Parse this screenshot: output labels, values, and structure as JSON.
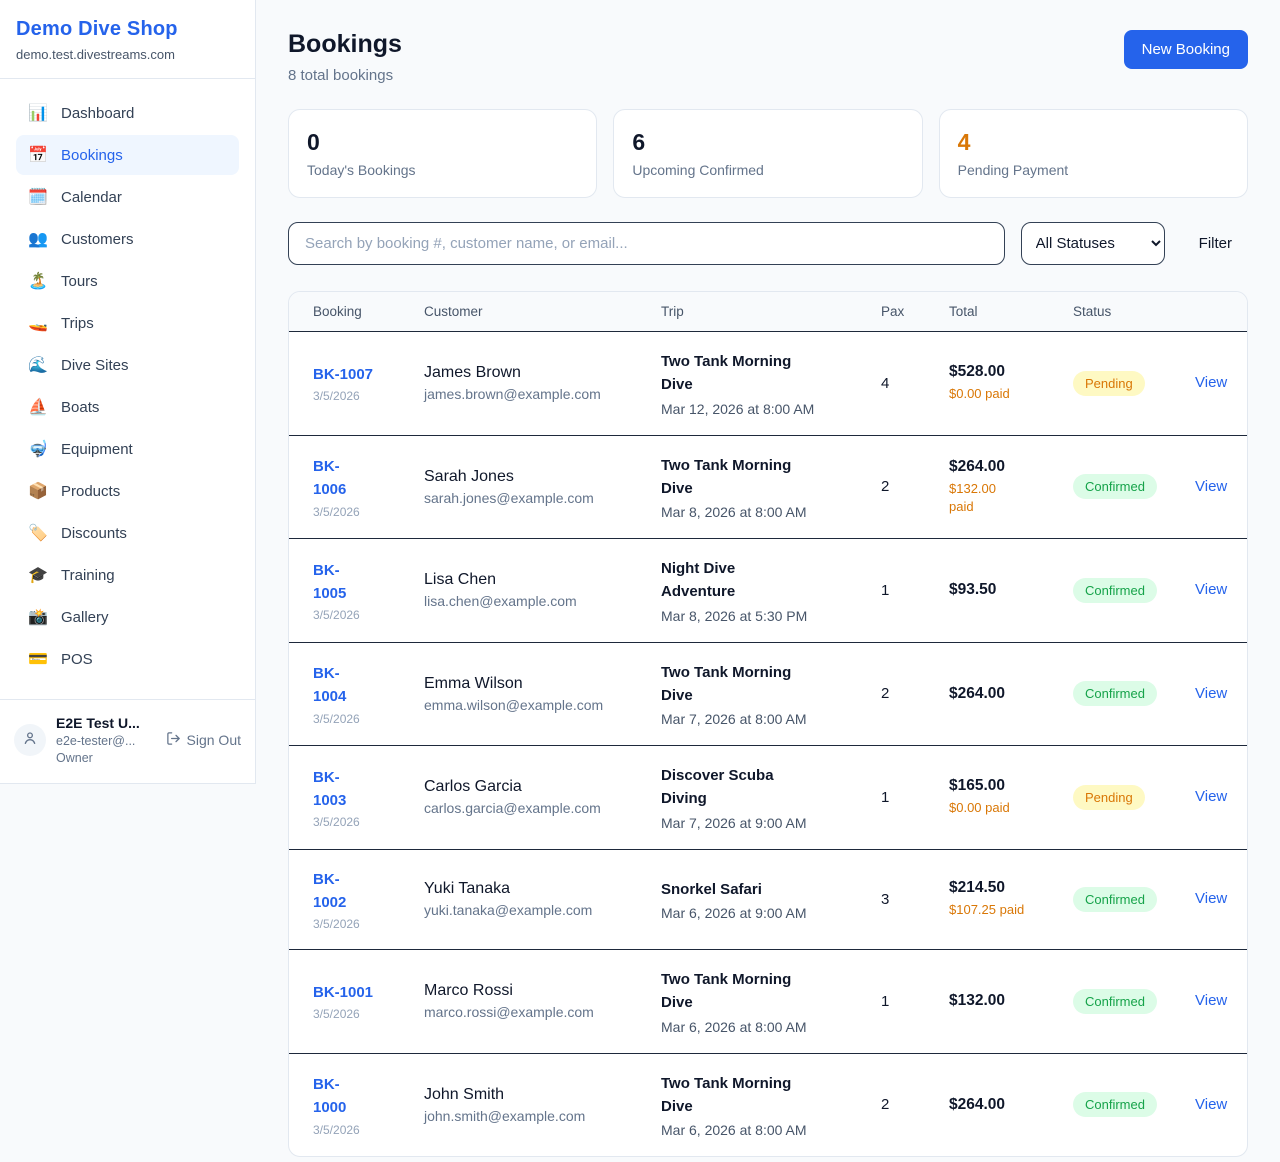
{
  "sidebar": {
    "brand": "Demo Dive Shop",
    "domain": "demo.test.divestreams.com",
    "items": [
      {
        "icon": "📊",
        "icon_name": "dashboard-icon",
        "label": "Dashboard",
        "active": false
      },
      {
        "icon": "📅",
        "icon_name": "bookings-icon",
        "label": "Bookings",
        "active": true
      },
      {
        "icon": "🗓️",
        "icon_name": "calendar-icon",
        "label": "Calendar",
        "active": false
      },
      {
        "icon": "👥",
        "icon_name": "customers-icon",
        "label": "Customers",
        "active": false
      },
      {
        "icon": "🏝️",
        "icon_name": "tours-icon",
        "label": "Tours",
        "active": false
      },
      {
        "icon": "🚤",
        "icon_name": "trips-icon",
        "label": "Trips",
        "active": false
      },
      {
        "icon": "🌊",
        "icon_name": "dive-sites-icon",
        "label": "Dive Sites",
        "active": false
      },
      {
        "icon": "⛵",
        "icon_name": "boats-icon",
        "label": "Boats",
        "active": false
      },
      {
        "icon": "🤿",
        "icon_name": "equipment-icon",
        "label": "Equipment",
        "active": false
      },
      {
        "icon": "📦",
        "icon_name": "products-icon",
        "label": "Products",
        "active": false
      },
      {
        "icon": "🏷️",
        "icon_name": "discounts-icon",
        "label": "Discounts",
        "active": false
      },
      {
        "icon": "🎓",
        "icon_name": "training-icon",
        "label": "Training",
        "active": false
      },
      {
        "icon": "📸",
        "icon_name": "gallery-icon",
        "label": "Gallery",
        "active": false
      },
      {
        "icon": "💳",
        "icon_name": "pos-icon",
        "label": "POS",
        "active": false
      }
    ],
    "user": {
      "name": "E2E Test U...",
      "email": "e2e-tester@...",
      "role": "Owner",
      "sign_out": "Sign Out"
    }
  },
  "header": {
    "title": "Bookings",
    "subtitle": "8 total bookings",
    "new_booking": "New Booking"
  },
  "stats": [
    {
      "value": "0",
      "label": "Today's Bookings",
      "accent": false
    },
    {
      "value": "6",
      "label": "Upcoming Confirmed",
      "accent": false
    },
    {
      "value": "4",
      "label": "Pending Payment",
      "accent": true
    }
  ],
  "controls": {
    "search_placeholder": "Search by booking #, customer name, or email...",
    "status_filter_value": "All Statuses",
    "filter_label": "Filter"
  },
  "table": {
    "headers": [
      "Booking",
      "Customer",
      "Trip",
      "Pax",
      "Total",
      "Status"
    ],
    "view_label": "View",
    "rows": [
      {
        "id": "BK-1007",
        "id_wrap": false,
        "date": "3/5/2026",
        "customer": "James Brown",
        "email": "james.brown@example.com",
        "trip": "Two Tank Morning Dive",
        "trip_time": "Mar 12, 2026 at 8:00 AM",
        "pax": "4",
        "total": "$528.00",
        "paid": "$0.00 paid",
        "paid_wrap": false,
        "status": "Pending"
      },
      {
        "id": "BK-1006",
        "id_wrap": true,
        "date": "3/5/2026",
        "customer": "Sarah Jones",
        "email": "sarah.jones@example.com",
        "trip": "Two Tank Morning Dive",
        "trip_time": "Mar 8, 2026 at 8:00 AM",
        "pax": "2",
        "total": "$264.00",
        "paid": "$132.00 paid",
        "paid_wrap": true,
        "status": "Confirmed"
      },
      {
        "id": "BK-1005",
        "id_wrap": true,
        "date": "3/5/2026",
        "customer": "Lisa Chen",
        "email": "lisa.chen@example.com",
        "trip": "Night Dive Adventure",
        "trip_time": "Mar 8, 2026 at 5:30 PM",
        "pax": "1",
        "total": "$93.50",
        "paid": "",
        "paid_wrap": false,
        "status": "Confirmed"
      },
      {
        "id": "BK-1004",
        "id_wrap": true,
        "date": "3/5/2026",
        "customer": "Emma Wilson",
        "email": "emma.wilson@example.com",
        "trip": "Two Tank Morning Dive",
        "trip_time": "Mar 7, 2026 at 8:00 AM",
        "pax": "2",
        "total": "$264.00",
        "paid": "",
        "paid_wrap": false,
        "status": "Confirmed"
      },
      {
        "id": "BK-1003",
        "id_wrap": true,
        "date": "3/5/2026",
        "customer": "Carlos Garcia",
        "email": "carlos.garcia@example.com",
        "trip": "Discover Scuba Diving",
        "trip_time": "Mar 7, 2026 at 9:00 AM",
        "pax": "1",
        "total": "$165.00",
        "paid": "$0.00 paid",
        "paid_wrap": false,
        "status": "Pending"
      },
      {
        "id": "BK-1002",
        "id_wrap": true,
        "date": "3/5/2026",
        "customer": "Yuki Tanaka",
        "email": "yuki.tanaka@example.com",
        "trip": "Snorkel Safari",
        "trip_time": "Mar 6, 2026 at 9:00 AM",
        "pax": "3",
        "total": "$214.50",
        "paid": "$107.25 paid",
        "paid_wrap": false,
        "status": "Confirmed"
      },
      {
        "id": "BK-1001",
        "id_wrap": false,
        "date": "3/5/2026",
        "customer": "Marco Rossi",
        "email": "marco.rossi@example.com",
        "trip": "Two Tank Morning Dive",
        "trip_time": "Mar 6, 2026 at 8:00 AM",
        "pax": "1",
        "total": "$132.00",
        "paid": "",
        "paid_wrap": false,
        "status": "Confirmed"
      },
      {
        "id": "BK-1000",
        "id_wrap": true,
        "date": "3/5/2026",
        "customer": "John Smith",
        "email": "john.smith@example.com",
        "trip": "Two Tank Morning Dive",
        "trip_time": "Mar 6, 2026 at 8:00 AM",
        "pax": "2",
        "total": "$264.00",
        "paid": "",
        "paid_wrap": false,
        "status": "Confirmed"
      }
    ]
  },
  "colors": {
    "accent": "#2563eb",
    "pending_text": "#d97706",
    "pending_bg": "#fef9c3",
    "confirmed_text": "#16a34a",
    "confirmed_bg": "#dcfce7",
    "paid_amount": "#d97706"
  }
}
